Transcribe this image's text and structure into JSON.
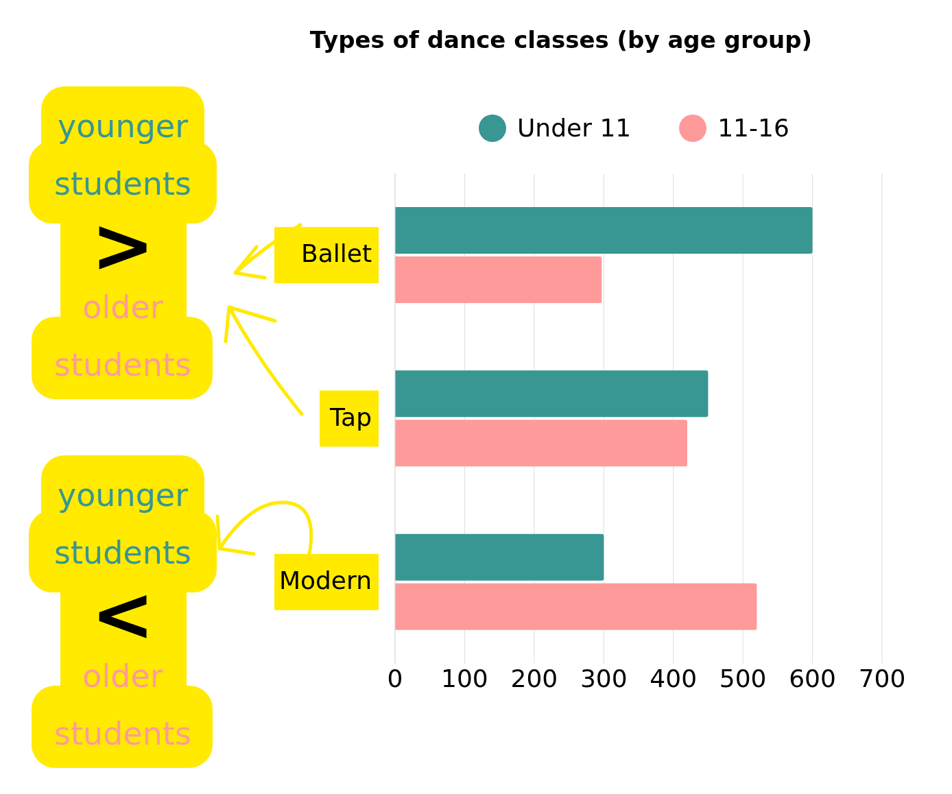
{
  "chart_data": {
    "type": "bar",
    "orientation": "horizontal",
    "title": "Types of dance classes (by age group)",
    "categories": [
      "Ballet",
      "Tap",
      "Modern"
    ],
    "series": [
      {
        "name": "Under 11",
        "color": "#389693",
        "values": [
          600,
          450,
          300
        ]
      },
      {
        "name": "11-16",
        "color": "#ff9a9a",
        "values": [
          297,
          420,
          520
        ]
      }
    ],
    "xlim": [
      0,
      700
    ],
    "xticks": [
      0,
      100,
      200,
      300,
      400,
      500,
      600,
      700
    ],
    "grid": "x",
    "legend": "top",
    "annotations": [
      "younger",
      "students",
      ">",
      "older",
      "students",
      "younger",
      "students",
      "<",
      "older",
      "students"
    ]
  }
}
